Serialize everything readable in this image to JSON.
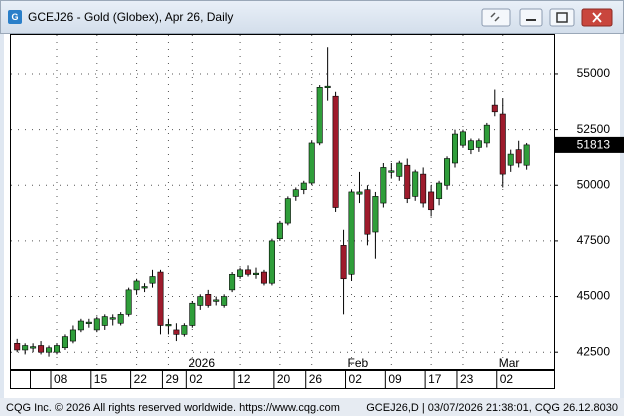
{
  "window": {
    "footer_left": "CQG Inc. © 2026 All rights reserved worldwide. https://www.cqg.com",
    "footer_right": "GCEJ26,D | 03/07/2026 21:38:01, CQG 26.12.8030"
  },
  "chart_data": {
    "type": "candlestick",
    "title": "GCEJ26 - Gold (Globex), Apr 26, Daily",
    "categories": [
      null,
      null,
      null,
      null,
      null,
      "08",
      null,
      null,
      null,
      null,
      "15",
      null,
      null,
      null,
      null,
      "22",
      null,
      null,
      null,
      "29",
      null,
      null,
      "02",
      null,
      null,
      null,
      null,
      null,
      "12",
      null,
      null,
      null,
      null,
      "20",
      null,
      null,
      null,
      "26",
      null,
      null,
      null,
      null,
      "02",
      null,
      null,
      null,
      null,
      "09",
      null,
      null,
      null,
      null,
      "17",
      null,
      null,
      null,
      "23",
      null,
      null,
      null,
      null,
      "02",
      null,
      null,
      null
    ],
    "period_labels": [
      null,
      null,
      null,
      null,
      null,
      null,
      null,
      null,
      null,
      null,
      null,
      null,
      null,
      null,
      null,
      null,
      null,
      null,
      null,
      null,
      null,
      null,
      "2026",
      null,
      null,
      null,
      null,
      null,
      null,
      null,
      null,
      null,
      null,
      null,
      null,
      null,
      null,
      null,
      null,
      null,
      null,
      null,
      "Feb",
      null,
      null,
      null,
      null,
      null,
      null,
      null,
      null,
      null,
      null,
      null,
      null,
      null,
      null,
      null,
      null,
      null,
      null,
      "Mar",
      null,
      null,
      null
    ],
    "open": [
      42900,
      42600,
      42700,
      42800,
      42500,
      42500,
      42700,
      43000,
      43500,
      43800,
      43500,
      43700,
      44000,
      43800,
      44200,
      45300,
      45400,
      45600,
      46100,
      43700,
      43500,
      43300,
      43700,
      44600,
      45100,
      44800,
      44600,
      45300,
      45900,
      46200,
      46000,
      46100,
      45600,
      47600,
      48300,
      49500,
      49800,
      50100,
      51900,
      54400,
      54000,
      47300,
      46000,
      49600,
      49800,
      47900,
      49200,
      50600,
      50400,
      50900,
      49500,
      50500,
      49700,
      49400,
      50000,
      51000,
      51800,
      51600,
      51700,
      51900,
      53600,
      53200,
      50900,
      51600,
      50900
    ],
    "high": [
      43100,
      42900,
      42900,
      43000,
      42800,
      42900,
      43300,
      43700,
      44000,
      44000,
      44100,
      44200,
      44200,
      44300,
      45400,
      45800,
      45600,
      46200,
      46200,
      44000,
      43800,
      43800,
      44800,
      45100,
      45300,
      45000,
      45100,
      46100,
      46300,
      46400,
      46300,
      46200,
      47600,
      48400,
      49500,
      49900,
      50200,
      52000,
      54500,
      56200,
      54200,
      48000,
      49800,
      50600,
      50000,
      49700,
      51000,
      51000,
      51100,
      51200,
      50700,
      50800,
      50000,
      50200,
      51300,
      52500,
      52500,
      52100,
      52100,
      52800,
      54300,
      53900,
      51600,
      52000,
      51900
    ],
    "low": [
      42500,
      42400,
      42500,
      42400,
      42300,
      42400,
      42600,
      42900,
      43400,
      43600,
      43400,
      43500,
      43700,
      43700,
      44100,
      45100,
      45200,
      45400,
      43300,
      43300,
      43000,
      43200,
      43600,
      44400,
      44500,
      44600,
      44500,
      45200,
      45800,
      45900,
      45800,
      45500,
      45500,
      47500,
      48200,
      49300,
      49600,
      50000,
      51800,
      53800,
      48800,
      44200,
      45700,
      49200,
      47300,
      46700,
      49000,
      50300,
      50200,
      49200,
      49300,
      49000,
      48600,
      49100,
      49800,
      50800,
      51700,
      51400,
      51500,
      51700,
      53100,
      49900,
      50600,
      50800,
      50700
    ],
    "close": [
      42600,
      42800,
      42750,
      42500,
      42700,
      42800,
      43200,
      43500,
      43900,
      43850,
      44000,
      44100,
      44050,
      44200,
      45300,
      45700,
      45450,
      45900,
      43700,
      43750,
      43300,
      43700,
      44700,
      45000,
      44600,
      44850,
      45000,
      46000,
      46200,
      46000,
      46050,
      45600,
      47500,
      48300,
      49400,
      49800,
      50100,
      51900,
      54400,
      54450,
      49000,
      45800,
      49700,
      49700,
      47800,
      49500,
      50800,
      50650,
      51000,
      49400,
      50600,
      49200,
      48900,
      50100,
      51200,
      52300,
      52400,
      52000,
      52000,
      52700,
      53300,
      50500,
      51400,
      51000,
      51813
    ],
    "up_color": "#2f9e3a",
    "down_color": "#9e1b2c",
    "last_price": 51813,
    "ylim": [
      41700,
      56750
    ],
    "yticks": [
      42500,
      45000,
      47500,
      50000,
      52500,
      55000
    ],
    "grid": true
  }
}
